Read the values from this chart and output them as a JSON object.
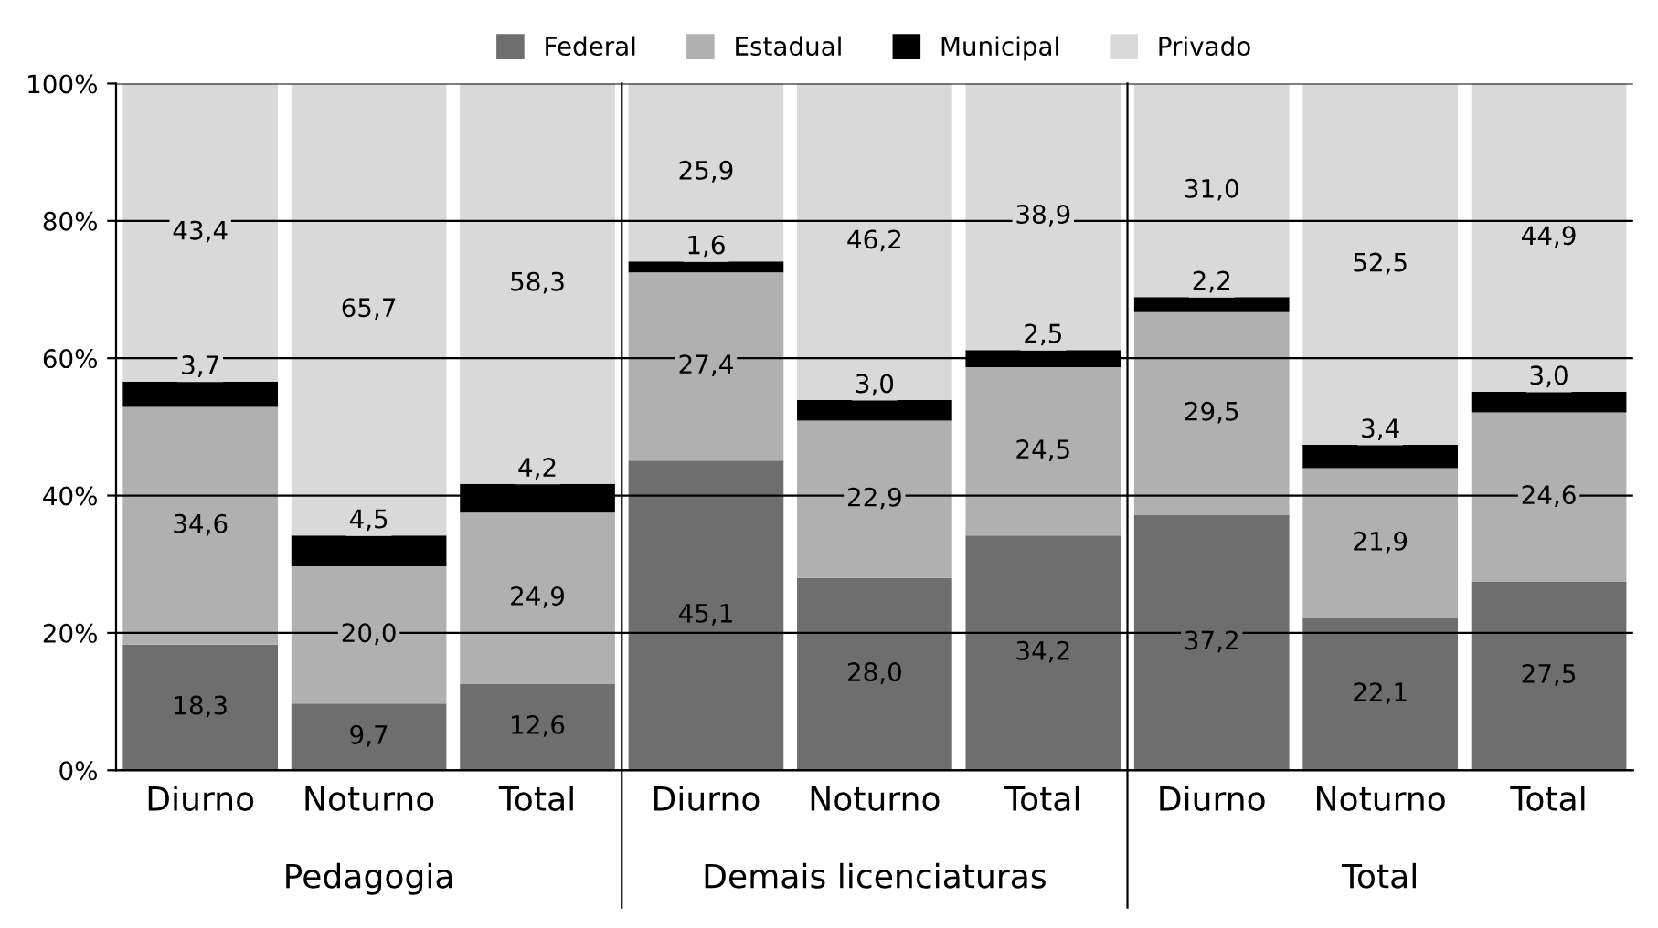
{
  "chart_data": {
    "type": "bar",
    "stacked": true,
    "categories": [
      "Diurno",
      "Noturno",
      "Total",
      "Diurno",
      "Noturno",
      "Total",
      "Diurno",
      "Noturno",
      "Total"
    ],
    "series": [
      {
        "name": "Federal",
        "color": "#6e6e6e",
        "values": [
          18.3,
          9.7,
          12.6,
          45.1,
          28.0,
          34.2,
          37.2,
          22.1,
          27.5
        ],
        "value_labels": [
          "18,3",
          "9,7",
          "12,6",
          "45,1",
          "28,0",
          "34,2",
          "37,2",
          "22,1",
          "27,5"
        ]
      },
      {
        "name": "Estadual",
        "color": "#b0b0b0",
        "values": [
          34.6,
          20.0,
          24.9,
          27.4,
          22.9,
          24.5,
          29.5,
          21.9,
          24.6
        ],
        "value_labels": [
          "34,6",
          "20,0",
          "24,9",
          "27,4",
          "22,9",
          "24,5",
          "29,5",
          "21,9",
          "24,6"
        ]
      },
      {
        "name": "Municipal",
        "color": "#000000",
        "values": [
          3.7,
          4.5,
          4.2,
          1.6,
          3.0,
          2.5,
          2.2,
          3.4,
          3.0
        ],
        "value_labels": [
          "3,7",
          "4,5",
          "4,2",
          "1,6",
          "3,0",
          "2,5",
          "2,2",
          "3,4",
          "3,0"
        ]
      },
      {
        "name": "Privado",
        "color": "#d9d9d9",
        "values": [
          43.4,
          65.7,
          58.3,
          25.9,
          46.2,
          38.9,
          31.0,
          52.5,
          44.9
        ],
        "value_labels": [
          "43,4",
          "65,7",
          "58,3",
          "25,9",
          "46,2",
          "38,9",
          "31,0",
          "52,5",
          "44,9"
        ]
      }
    ],
    "ylim": [
      0,
      100
    ],
    "yticks": [
      {
        "value": 0,
        "label": "0%"
      },
      {
        "value": 20,
        "label": "20%"
      },
      {
        "value": 40,
        "label": "40%"
      },
      {
        "value": 60,
        "label": "60%"
      },
      {
        "value": 80,
        "label": "80%"
      },
      {
        "value": 100,
        "label": "100%"
      }
    ],
    "grid": "y",
    "legend": "top",
    "annotations": [
      "Pedagogia",
      "Demais licenciaturas",
      "Total"
    ]
  }
}
